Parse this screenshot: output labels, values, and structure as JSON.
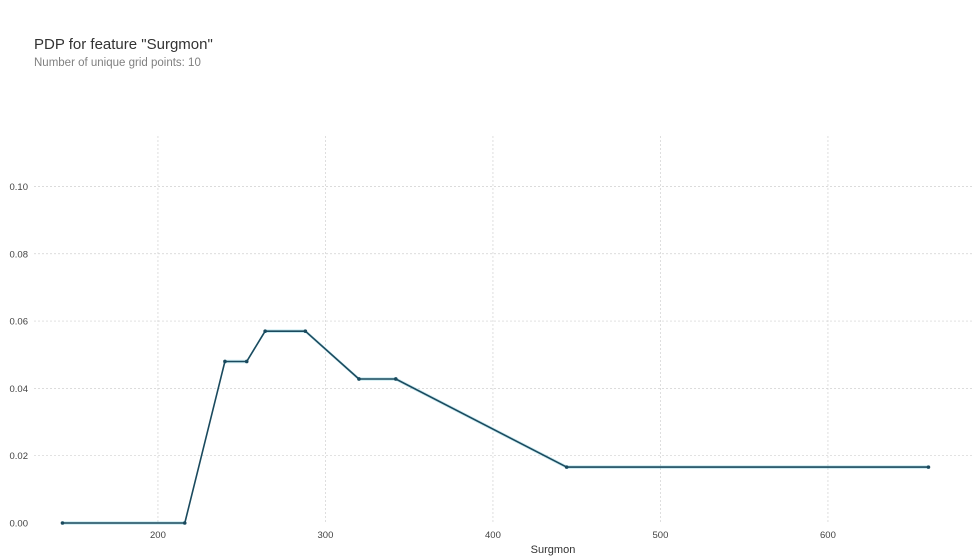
{
  "chart_data": {
    "type": "line",
    "title": "PDP for feature \"Surgmon\"",
    "subtitle": "Number of unique grid points: 10",
    "xlabel": "Surgmon",
    "ylabel": "",
    "xlim": [
      126,
      686
    ],
    "ylim": [
      0,
      0.115
    ],
    "xticks": [
      200,
      300,
      400,
      500,
      600
    ],
    "xtick_labels": [
      "200",
      "300",
      "400",
      "500",
      "600"
    ],
    "yticks": [
      0.0,
      0.02,
      0.04,
      0.06,
      0.08,
      0.1
    ],
    "ytick_labels": [
      "0.00",
      "0.02",
      "0.04",
      "0.06",
      "0.08",
      "0.10"
    ],
    "grid": true,
    "series": [
      {
        "x": [
          143,
          216,
          240,
          253,
          264,
          288,
          320,
          342,
          444,
          660
        ],
        "y": [
          0.0,
          0.0,
          0.048,
          0.048,
          0.057,
          0.057,
          0.0428,
          0.0428,
          0.0166,
          0.0166
        ],
        "style": "step-plateau",
        "color": "#1a4a5e",
        "band_color": "#66c2d7"
      }
    ]
  }
}
